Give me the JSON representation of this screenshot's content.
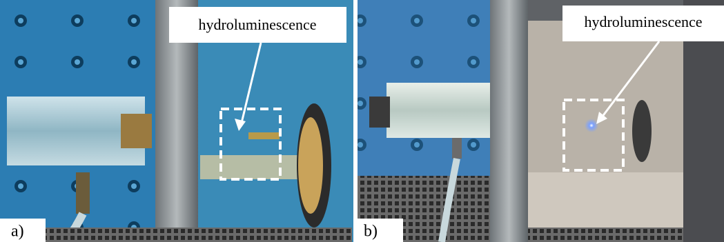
{
  "panels": [
    {
      "label": "a)",
      "annotation": "hydroluminescence"
    },
    {
      "label": "b)",
      "annotation": "hydroluminescence"
    }
  ]
}
